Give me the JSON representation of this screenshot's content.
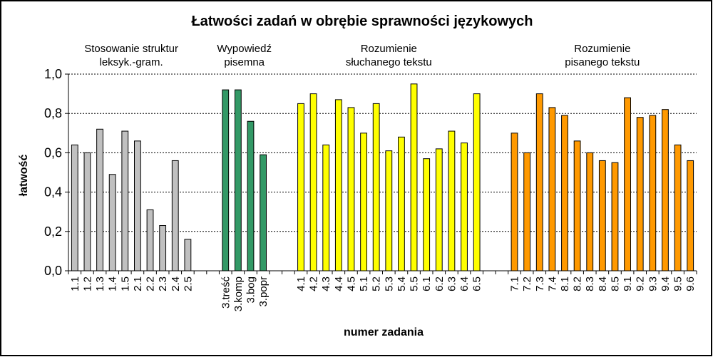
{
  "chart_data": {
    "type": "bar",
    "title": "Łatwości zadań w obrębie sprawności językowych",
    "xlabel": "numer zadania",
    "ylabel": "łatwość",
    "ylim": [
      0,
      1
    ],
    "yticks": [
      "0,0",
      "0,2",
      "0,4",
      "0,6",
      "0,8",
      "1,0"
    ],
    "grid": "horizontal dashed at 0.8 and 1.0",
    "colors": {
      "series1": "#c0c0c0",
      "series2": "#339966",
      "series3": "#ffff00",
      "series4": "#ff9900",
      "outline": "#000000"
    },
    "series": [
      {
        "label_lines": [
          "Stosowanie struktur",
          "leksyk.-gram."
        ],
        "color": "#c0c0c0",
        "categories": [
          "1.1",
          "1.2",
          "1.3",
          "1.4",
          "1.5",
          "2.1",
          "2.2",
          "2.3",
          "2.4",
          "2.5"
        ],
        "values": [
          0.64,
          0.6,
          0.72,
          0.49,
          0.71,
          0.66,
          0.31,
          0.23,
          0.56,
          0.16
        ]
      },
      {
        "label_lines": [
          "Wypowiedź",
          "pisemna"
        ],
        "color": "#339966",
        "categories": [
          "3.treść",
          "3.komp",
          "3.bog",
          "3.popr"
        ],
        "values": [
          0.92,
          0.92,
          0.76,
          0.59
        ]
      },
      {
        "label_lines": [
          "Rozumienie",
          "słuchanego tekstu"
        ],
        "color": "#ffff00",
        "categories": [
          "4.1",
          "4.2",
          "4.3",
          "4.4",
          "4.5",
          "5.1",
          "5.2",
          "5.3",
          "5.4",
          "5.5",
          "6.1",
          "6.2",
          "6.3",
          "6.4",
          "6.5"
        ],
        "values": [
          0.85,
          0.9,
          0.64,
          0.87,
          0.83,
          0.7,
          0.85,
          0.61,
          0.68,
          0.95,
          0.57,
          0.62,
          0.71,
          0.65,
          0.9
        ]
      },
      {
        "label_lines": [
          "Rozumienie",
          "pisanego tekstu"
        ],
        "color": "#ff9900",
        "categories": [
          "7.1",
          "7.2",
          "7.3",
          "7.4",
          "8.1",
          "8.2",
          "8.3",
          "8.4",
          "8.5",
          "9.1",
          "9.2",
          "9.3",
          "9.4",
          "9.5",
          "9.6"
        ],
        "values": [
          0.7,
          0.6,
          0.9,
          0.83,
          0.79,
          0.66,
          0.6,
          0.56,
          0.55,
          0.88,
          0.78,
          0.79,
          0.82,
          0.64,
          0.56
        ]
      }
    ]
  }
}
